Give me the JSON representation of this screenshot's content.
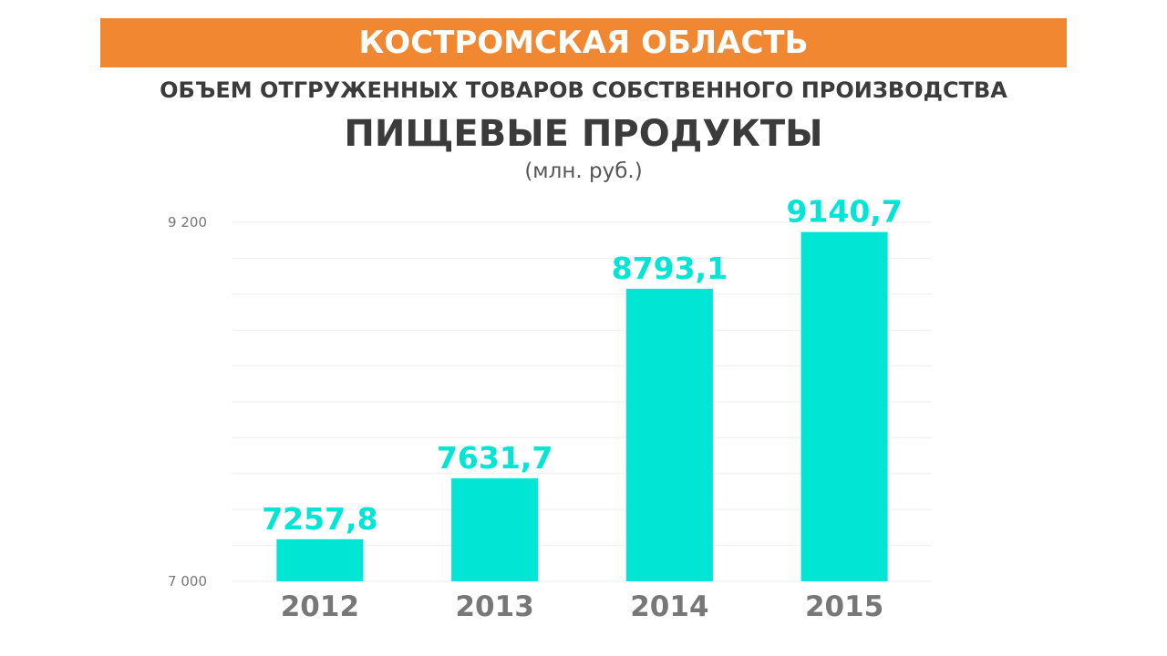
{
  "header": {
    "region": "КОСТРОМСКАЯ ОБЛАСТЬ",
    "subtitle": "ОБЪЕМ ОТГРУЖЕННЫХ ТОВАРОВ СОБСТВЕННОГО ПРОИЗВОДСТВА",
    "title": "ПИЩЕВЫЕ ПРОДУКТЫ",
    "units": "(млн. руб.)"
  },
  "colors": {
    "banner": "#f28731",
    "bar": "#00e5d4",
    "data_label": "#00e5d4",
    "text": "#3b3b3b"
  },
  "chart_data": {
    "type": "bar",
    "title": "ПИЩЕВЫЕ ПРОДУКТЫ",
    "ylabel": "(млн. руб.)",
    "xlabel": "",
    "categories": [
      "2012",
      "2013",
      "2014",
      "2015"
    ],
    "values": [
      7257.8,
      7631.7,
      8793.1,
      9140.7
    ],
    "value_labels": [
      "7257,8",
      "7631,7",
      "8793,1",
      "9140,7"
    ],
    "ylim": [
      7000,
      9200
    ],
    "yticks": [
      7000,
      9200
    ],
    "ytick_labels": [
      "7 000",
      "9 200"
    ],
    "grid": true,
    "gridline_count": 11,
    "legend": "none"
  }
}
